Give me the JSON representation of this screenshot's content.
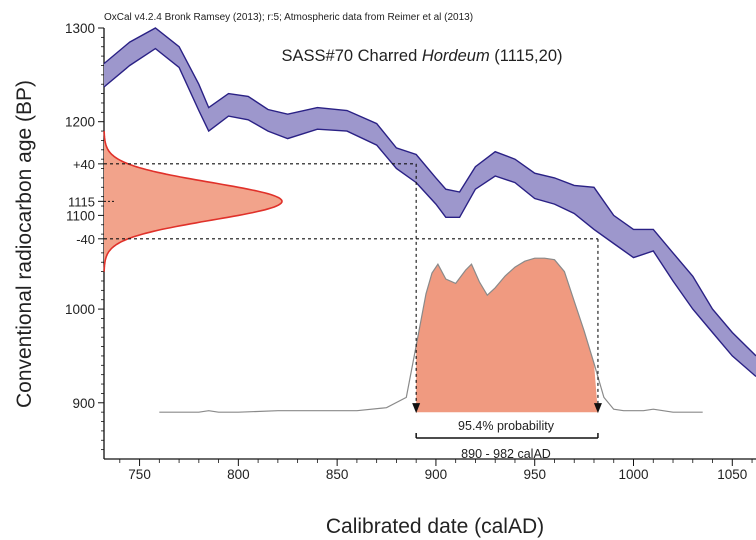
{
  "header_text": "OxCal v4.2.4 Bronk Ramsey (2013); r:5; Atmospheric data from Reimer et al (2013)",
  "sample_title": {
    "prefix": "SASS#70 Charred ",
    "taxon": "Hordeum",
    "suffix": " (1115,20)"
  },
  "colors": {
    "curve_fill": "#9d97cc",
    "curve_stroke": "#2a2185",
    "radiocarbon_fill": "#f2a38b",
    "radiocarbon_stroke": "#e0312a",
    "calibrated_fill": "#f09a80",
    "calibrated_stroke": "#8a8a8a",
    "axis": "#111111"
  },
  "chart_data": {
    "type": "area",
    "xlabel": "Calibrated date (calAD)",
    "ylabel": "Conventional radiocarbon age (BP)",
    "xlim": [
      732,
      1062
    ],
    "ylim": [
      840,
      1300
    ],
    "x_ticks": [
      "750",
      "800",
      "850",
      "900",
      "950",
      "1000",
      "1050"
    ],
    "x_tick_values": [
      750,
      800,
      850,
      900,
      950,
      1000,
      1050
    ],
    "y_ticks": [
      "900",
      "1000",
      "1100",
      "1200",
      "1300"
    ],
    "y_tick_values": [
      900,
      1000,
      1100,
      1200,
      1300
    ],
    "y_annotations": [
      {
        "label": "+40",
        "value": 1155
      },
      {
        "label": "1115",
        "value": 1115
      },
      {
        "label": "-40",
        "value": 1075
      }
    ],
    "calibration_curve": {
      "x": [
        732,
        745,
        758,
        770,
        780,
        785,
        795,
        805,
        815,
        825,
        840,
        855,
        870,
        880,
        890,
        900,
        905,
        912,
        920,
        930,
        940,
        950,
        960,
        970,
        980,
        990,
        1000,
        1010,
        1020,
        1030,
        1040,
        1050,
        1062
      ],
      "upper": [
        1262,
        1285,
        1300,
        1280,
        1240,
        1215,
        1230,
        1227,
        1213,
        1208,
        1215,
        1212,
        1198,
        1172,
        1165,
        1140,
        1128,
        1125,
        1152,
        1168,
        1160,
        1145,
        1140,
        1132,
        1130,
        1100,
        1085,
        1085,
        1060,
        1035,
        1000,
        975,
        950
      ],
      "lower": [
        1237,
        1260,
        1278,
        1258,
        1212,
        1190,
        1206,
        1202,
        1190,
        1182,
        1192,
        1190,
        1175,
        1150,
        1135,
        1112,
        1098,
        1098,
        1128,
        1142,
        1135,
        1118,
        1112,
        1102,
        1085,
        1070,
        1055,
        1062,
        1030,
        1000,
        975,
        950,
        928
      ]
    },
    "radiocarbon_date": {
      "mean": 1115,
      "sigma": 20,
      "range": [
        1040,
        1190
      ]
    },
    "calibrated_distribution": {
      "x": [
        760,
        780,
        785,
        790,
        800,
        820,
        840,
        860,
        875,
        885,
        890,
        895,
        898,
        901,
        905,
        910,
        915,
        918,
        922,
        926,
        930,
        935,
        940,
        945,
        950,
        955,
        960,
        965,
        970,
        975,
        980,
        985,
        990,
        995,
        1000,
        1005,
        1010,
        1015,
        1020,
        1035
      ],
      "y": [
        0,
        0,
        0.01,
        0,
        0,
        0.01,
        0.01,
        0.01,
        0.03,
        0.1,
        0.45,
        0.8,
        0.94,
        1.0,
        0.9,
        0.87,
        0.96,
        1.0,
        0.88,
        0.79,
        0.84,
        0.92,
        0.98,
        1.02,
        1.04,
        1.04,
        1.03,
        0.95,
        0.75,
        0.55,
        0.33,
        0.1,
        0.02,
        0.01,
        0.01,
        0.01,
        0.02,
        0.01,
        0,
        0
      ],
      "shaded_range": [
        890,
        982
      ]
    },
    "probability_label": "95.4% probability",
    "range_label": "890 - 982 calAD",
    "range_values": [
      890,
      982
    ]
  }
}
